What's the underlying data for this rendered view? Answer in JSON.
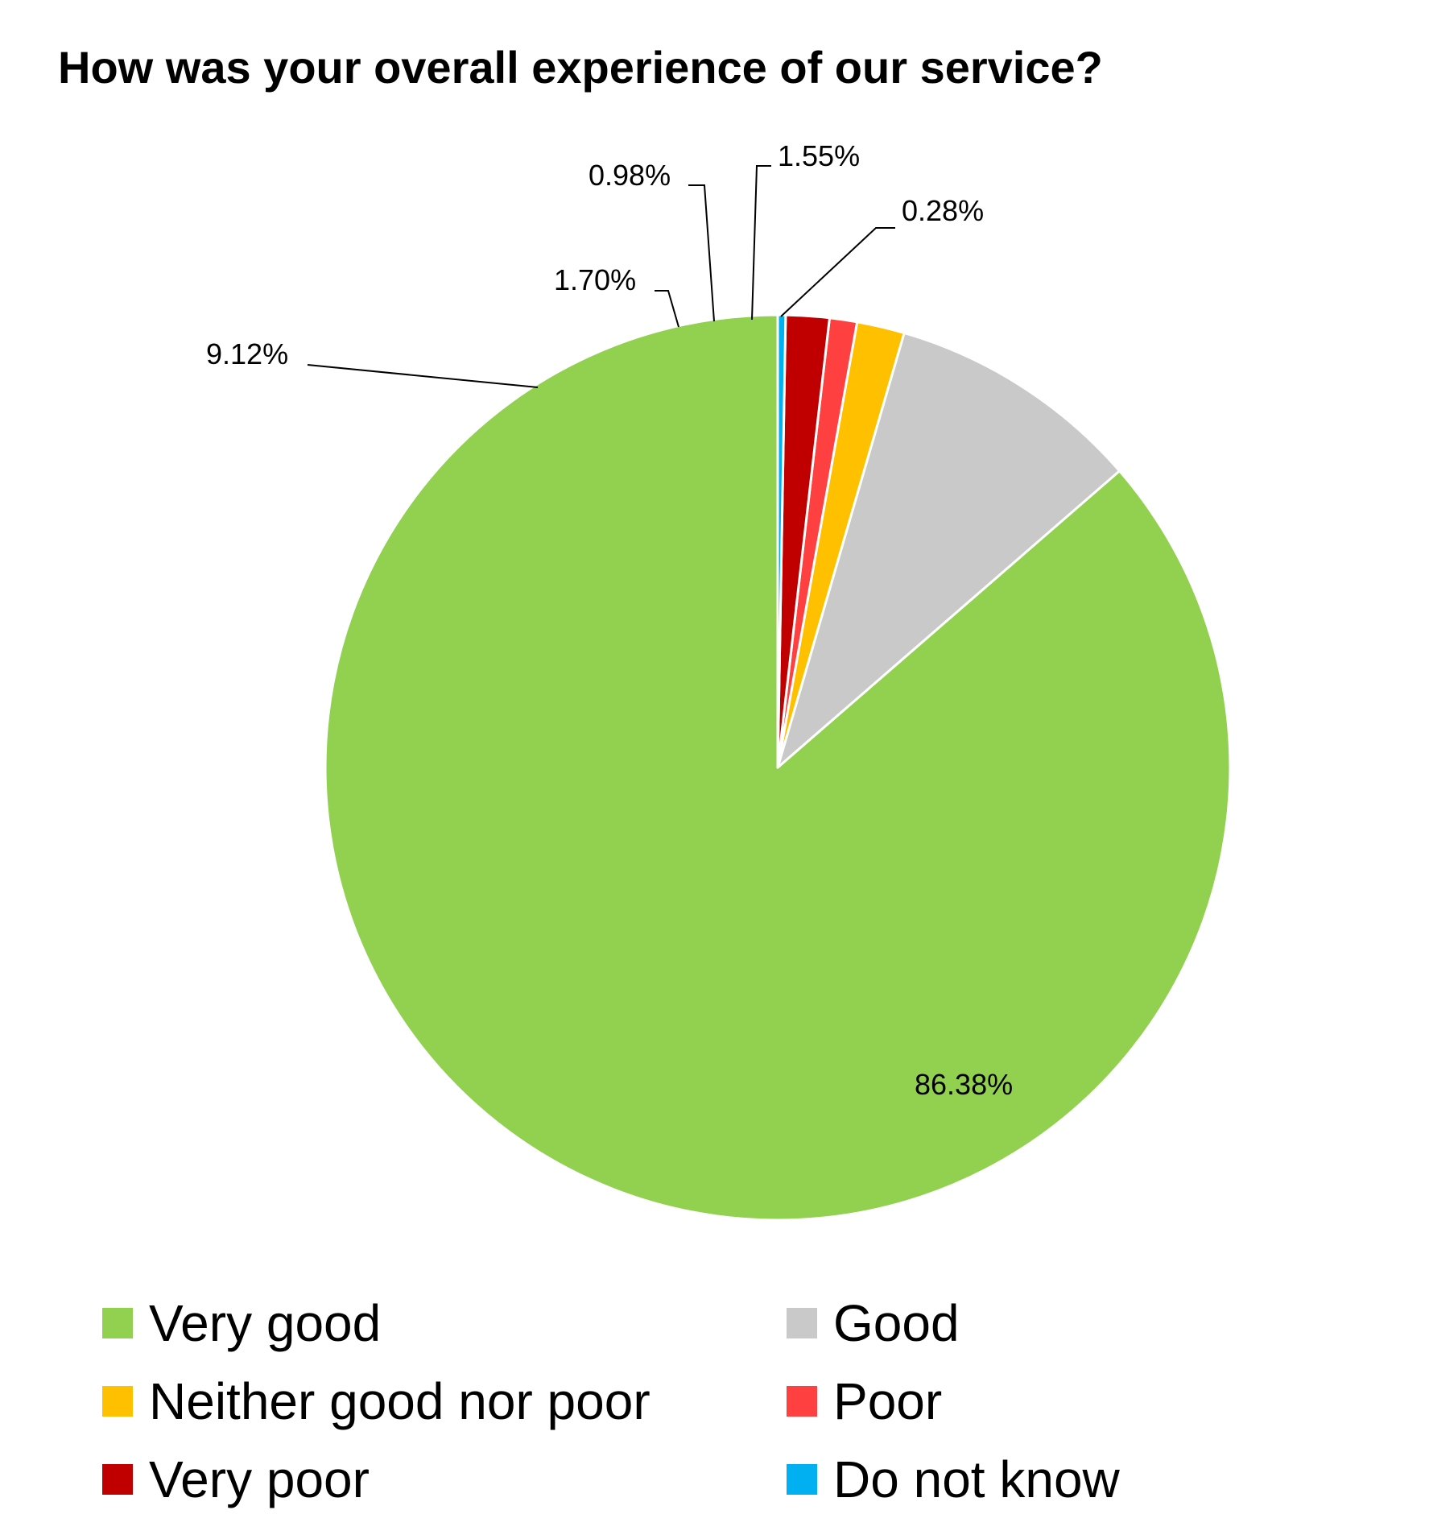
{
  "chart_data": {
    "type": "pie",
    "title": "How was your overall experience of our service?",
    "slices": [
      {
        "label": "Very good",
        "value": 86.38,
        "display": "86.38%",
        "color": "#92D050"
      },
      {
        "label": "Good",
        "value": 9.12,
        "display": "9.12%",
        "color": "#C9C9C9"
      },
      {
        "label": "Neither good nor poor",
        "value": 1.7,
        "display": "1.70%",
        "color": "#FFC000"
      },
      {
        "label": "Poor",
        "value": 0.98,
        "display": "0.98%",
        "color": "#FF4040"
      },
      {
        "label": "Very poor",
        "value": 1.55,
        "display": "1.55%",
        "color": "#C00000"
      },
      {
        "label": "Do not know",
        "value": 0.28,
        "display": "0.28%",
        "color": "#00B0F0"
      }
    ],
    "legend_position": "bottom",
    "legend_order": [
      "Very good",
      "Good",
      "Neither good nor poor",
      "Poor",
      "Very poor",
      "Do not know"
    ]
  }
}
